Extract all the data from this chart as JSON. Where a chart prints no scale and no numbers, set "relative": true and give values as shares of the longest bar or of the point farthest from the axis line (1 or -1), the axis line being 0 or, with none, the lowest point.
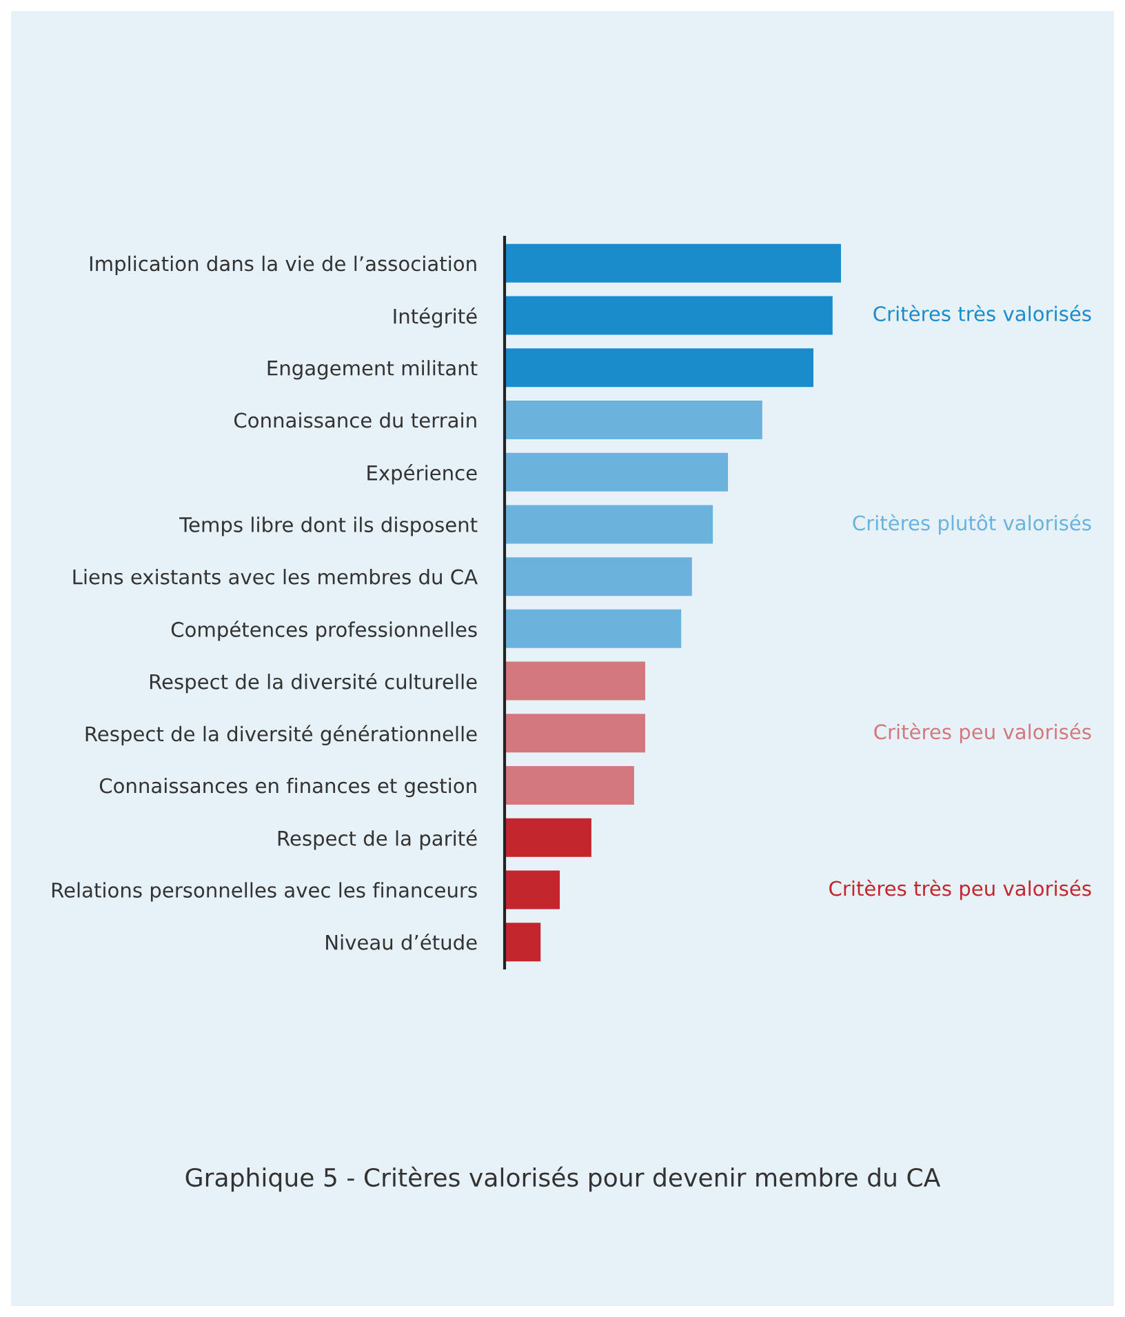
{
  "chart_data": {
    "type": "bar",
    "orientation": "horizontal",
    "relative": true,
    "title": "Graphique 5 - Critères valorisés pour devenir membre du CA",
    "categories": [
      "Implication dans la vie de l’association",
      "Intégrité",
      "Engagement militant",
      "Connaissance du terrain",
      "Expérience",
      "Temps libre dont ils disposent",
      "Liens existants avec les membres du CA",
      "Compétences professionnelles",
      "Respect de la diversité culturelle",
      "Respect de la diversité générationnelle",
      "Connaissances en finances et gestion",
      "Respect de la parité",
      "Relations personnelles avec les financeurs",
      "Niveau d’étude"
    ],
    "series": [
      {
        "name": "Critères très valorisés",
        "color": "#1a8bcb",
        "values": [
          1,
          0.975,
          0.918,
          null,
          null,
          null,
          null,
          null,
          null,
          null,
          null,
          null,
          null,
          null
        ]
      },
      {
        "name": "Critères plutôt valorisés",
        "color": "#6bb3dc",
        "values": [
          null,
          null,
          null,
          0.766,
          0.664,
          0.619,
          0.557,
          0.525,
          null,
          null,
          null,
          null,
          null,
          null
        ]
      },
      {
        "name": "Critères peu valorisés",
        "color": "#d47880",
        "values": [
          null,
          null,
          null,
          null,
          null,
          null,
          null,
          null,
          0.418,
          0.418,
          0.385,
          null,
          null,
          null
        ]
      },
      {
        "name": "Critères très peu valorisés",
        "color": "#c4262e",
        "values": [
          null,
          null,
          null,
          null,
          null,
          null,
          null,
          null,
          null,
          null,
          null,
          0.258,
          0.164,
          0.107
        ]
      }
    ]
  }
}
